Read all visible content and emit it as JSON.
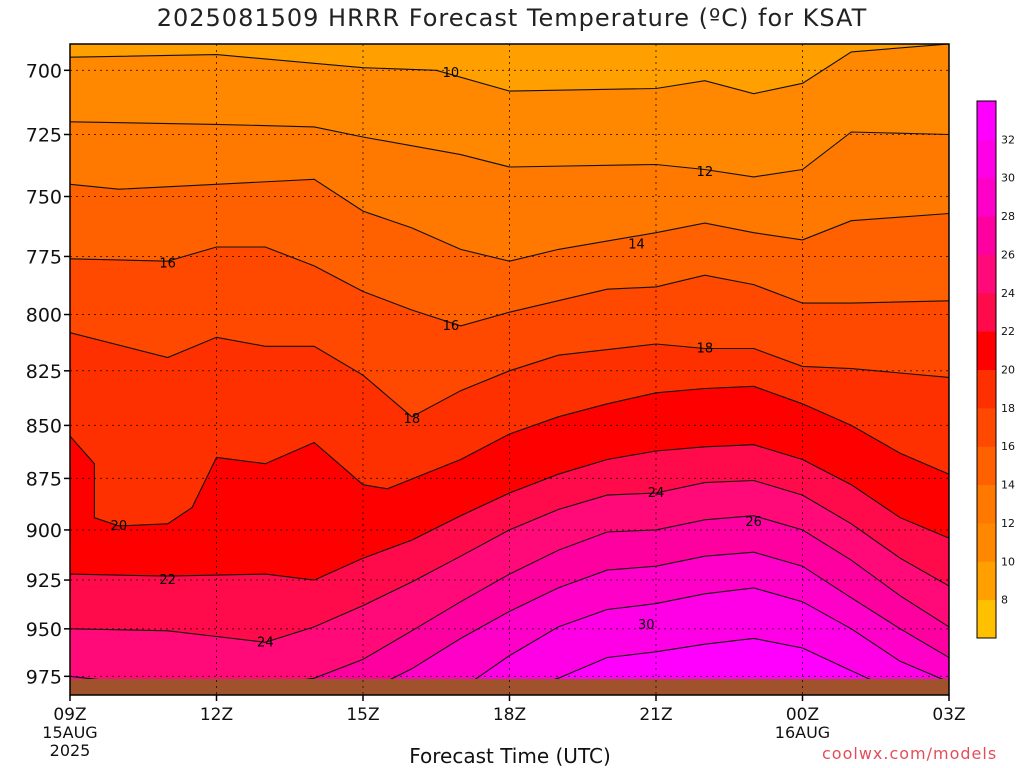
{
  "chart_data": {
    "type": "heatmap",
    "title": "2025081509 HRRR Forecast Temperature (ºC) for KSAT",
    "xlabel": "Forecast Time (UTC)",
    "ylabel": "",
    "y_scale": "log-pressure (inverted)",
    "ylim": [
      985,
      690
    ],
    "x_ticks": [
      {
        "label": "09Z",
        "sublabels": [
          "15AUG",
          "2025"
        ]
      },
      {
        "label": "12Z",
        "sublabels": []
      },
      {
        "label": "15Z",
        "sublabels": []
      },
      {
        "label": "18Z",
        "sublabels": []
      },
      {
        "label": "21Z",
        "sublabels": []
      },
      {
        "label": "00Z",
        "sublabels": [
          "16AUG"
        ]
      },
      {
        "label": "03Z",
        "sublabels": []
      }
    ],
    "x_hours": [
      0,
      3,
      6,
      9,
      12,
      15,
      18
    ],
    "y_ticks": [
      700,
      725,
      750,
      775,
      800,
      825,
      850,
      875,
      900,
      925,
      950,
      975
    ],
    "colorbar": {
      "tick_labels": [
        8,
        10,
        12,
        14,
        16,
        18,
        20,
        22,
        24,
        26,
        28,
        30,
        32
      ],
      "min": 6,
      "max": 34,
      "colors": [
        "#ffc000",
        "#ffa000",
        "#ff8800",
        "#ff7800",
        "#ff6000",
        "#ff4800",
        "#ff3000",
        "#ff0000",
        "#ff0a4a",
        "#ff0a78",
        "#ff00a0",
        "#ff00c8",
        "#ff00e6",
        "#ff00ff"
      ]
    },
    "contour_levels": [
      10,
      11,
      12,
      13,
      14,
      15,
      16,
      17,
      18,
      19,
      20,
      21,
      22,
      23,
      24,
      25,
      26,
      27,
      28,
      29,
      30,
      31,
      32
    ],
    "labeled_contours": [
      {
        "label": "10",
        "x": 7.8,
        "y": 701
      },
      {
        "label": "12",
        "x": 13.0,
        "y": 740
      },
      {
        "label": "14",
        "x": 11.6,
        "y": 770
      },
      {
        "label": "16",
        "x": 2.0,
        "y": 778
      },
      {
        "label": "16",
        "x": 7.8,
        "y": 805
      },
      {
        "label": "18",
        "x": 7.0,
        "y": 847
      },
      {
        "label": "18",
        "x": 13.0,
        "y": 815
      },
      {
        "label": "20",
        "x": 1.0,
        "y": 898
      },
      {
        "label": "22",
        "x": 2.0,
        "y": 925
      },
      {
        "label": "24",
        "x": 4.0,
        "y": 957
      },
      {
        "label": "24",
        "x": 12.0,
        "y": 882
      },
      {
        "label": "26",
        "x": 14.0,
        "y": 896
      },
      {
        "label": "30",
        "x": 11.8,
        "y": 948
      }
    ],
    "contours": [
      {
        "level": 10,
        "points": [
          [
            0,
            695
          ],
          [
            3,
            694
          ],
          [
            6,
            699
          ],
          [
            7.5,
            700
          ],
          [
            9,
            708
          ],
          [
            12,
            707
          ],
          [
            13,
            704
          ],
          [
            14,
            709
          ],
          [
            15,
            705
          ],
          [
            16,
            693
          ],
          [
            18,
            690
          ]
        ]
      },
      {
        "level": 12,
        "points": [
          [
            0,
            720
          ],
          [
            3,
            721
          ],
          [
            5,
            722
          ],
          [
            6,
            726
          ],
          [
            8,
            733
          ],
          [
            9,
            738
          ],
          [
            12,
            737
          ],
          [
            13,
            739
          ],
          [
            14,
            742
          ],
          [
            15,
            739
          ],
          [
            16,
            724
          ],
          [
            18,
            725
          ]
        ]
      },
      {
        "level": 14,
        "points": [
          [
            0,
            745
          ],
          [
            1,
            747
          ],
          [
            3,
            745
          ],
          [
            5,
            743
          ],
          [
            6,
            756
          ],
          [
            7,
            763
          ],
          [
            8,
            772
          ],
          [
            9,
            777
          ],
          [
            10,
            772
          ],
          [
            12,
            765
          ],
          [
            13,
            761
          ],
          [
            14,
            765
          ],
          [
            15,
            768
          ],
          [
            16,
            760
          ],
          [
            18,
            757
          ]
        ]
      },
      {
        "level": 16,
        "points": [
          [
            0,
            776
          ],
          [
            2,
            777
          ],
          [
            3,
            771
          ],
          [
            4,
            771
          ],
          [
            5,
            779
          ],
          [
            6,
            790
          ],
          [
            7,
            798
          ],
          [
            8,
            805
          ],
          [
            9,
            799
          ],
          [
            11,
            789
          ],
          [
            12,
            788
          ],
          [
            13,
            783
          ],
          [
            14,
            787
          ],
          [
            15,
            795
          ],
          [
            16,
            795
          ],
          [
            18,
            794
          ]
        ]
      },
      {
        "level": 18,
        "points": [
          [
            0,
            808
          ],
          [
            2,
            819
          ],
          [
            3,
            810
          ],
          [
            4,
            814
          ],
          [
            5,
            814
          ],
          [
            6,
            827
          ],
          [
            7,
            846
          ],
          [
            8,
            834
          ],
          [
            9,
            825
          ],
          [
            10,
            818
          ],
          [
            12,
            813
          ],
          [
            13,
            815
          ],
          [
            14,
            815
          ],
          [
            15,
            823
          ],
          [
            16,
            824
          ],
          [
            18,
            828
          ]
        ]
      },
      {
        "level": 20,
        "points": [
          [
            0,
            855
          ],
          [
            0.5,
            868
          ],
          [
            0.5,
            894
          ],
          [
            1,
            898
          ],
          [
            2,
            897
          ],
          [
            2.5,
            889
          ],
          [
            3,
            865
          ],
          [
            4,
            868
          ],
          [
            5,
            858
          ],
          [
            6,
            878
          ],
          [
            6.5,
            880
          ],
          [
            8,
            866
          ],
          [
            9,
            854
          ],
          [
            10,
            846
          ],
          [
            11,
            840
          ],
          [
            12,
            835
          ],
          [
            13,
            833
          ],
          [
            14,
            832
          ],
          [
            15,
            840
          ],
          [
            16,
            850
          ],
          [
            17,
            863
          ],
          [
            18,
            873
          ]
        ]
      },
      {
        "level": 22,
        "points": [
          [
            0,
            922
          ],
          [
            2,
            923
          ],
          [
            4,
            922
          ],
          [
            5,
            925
          ],
          [
            6,
            914
          ],
          [
            7,
            905
          ],
          [
            8,
            893
          ],
          [
            9,
            882
          ],
          [
            10,
            873
          ],
          [
            11,
            866
          ],
          [
            12,
            862
          ],
          [
            13,
            860
          ],
          [
            14,
            859
          ],
          [
            15,
            866
          ],
          [
            16,
            878
          ],
          [
            17,
            894
          ],
          [
            18,
            904
          ]
        ]
      },
      {
        "level": 24,
        "points": [
          [
            0,
            950
          ],
          [
            2,
            951
          ],
          [
            3,
            954
          ],
          [
            4,
            957
          ],
          [
            5,
            949
          ],
          [
            6,
            938
          ],
          [
            7,
            926
          ],
          [
            8,
            913
          ],
          [
            9,
            900
          ],
          [
            10,
            890
          ],
          [
            11,
            883
          ],
          [
            12,
            882
          ],
          [
            13,
            877
          ],
          [
            14,
            876
          ],
          [
            15,
            883
          ],
          [
            16,
            897
          ],
          [
            17,
            914
          ],
          [
            18,
            928
          ]
        ]
      },
      {
        "level": 26,
        "points": [
          [
            0,
            975
          ],
          [
            3,
            984
          ],
          [
            5,
            976
          ],
          [
            6,
            966
          ],
          [
            7,
            951
          ],
          [
            8,
            936
          ],
          [
            9,
            922
          ],
          [
            10,
            910
          ],
          [
            11,
            901
          ],
          [
            12,
            900
          ],
          [
            13,
            895
          ],
          [
            14,
            893
          ],
          [
            15,
            900
          ],
          [
            16,
            915
          ],
          [
            17,
            933
          ],
          [
            18,
            949
          ]
        ]
      },
      {
        "level": 28,
        "points": [
          [
            6,
            984
          ],
          [
            7,
            971
          ],
          [
            8,
            955
          ],
          [
            9,
            941
          ],
          [
            10,
            929
          ],
          [
            11,
            920
          ],
          [
            12,
            918
          ],
          [
            13,
            913
          ],
          [
            14,
            911
          ],
          [
            15,
            918
          ],
          [
            16,
            934
          ],
          [
            17,
            950
          ],
          [
            18,
            965
          ]
        ]
      },
      {
        "level": 30,
        "points": [
          [
            8,
            982
          ],
          [
            9,
            964
          ],
          [
            10,
            949
          ],
          [
            11,
            940
          ],
          [
            12,
            937
          ],
          [
            13,
            932
          ],
          [
            14,
            929
          ],
          [
            15,
            936
          ],
          [
            16,
            950
          ],
          [
            17,
            967
          ],
          [
            18,
            978
          ]
        ]
      },
      {
        "level": 32,
        "points": [
          [
            9,
            985
          ],
          [
            10,
            976
          ],
          [
            11,
            965
          ],
          [
            12,
            962
          ],
          [
            13,
            958
          ],
          [
            14,
            955
          ],
          [
            15,
            960
          ],
          [
            16,
            972
          ],
          [
            17,
            984
          ]
        ]
      },
      {
        "level": 33,
        "points": [
          [
            11,
            983
          ],
          [
            12,
            981
          ],
          [
            13,
            980
          ],
          [
            14,
            978
          ],
          [
            15,
            982
          ],
          [
            16,
            985
          ]
        ]
      }
    ],
    "ground_color": "#a0522d"
  },
  "watermark": "coolwx.com/models"
}
